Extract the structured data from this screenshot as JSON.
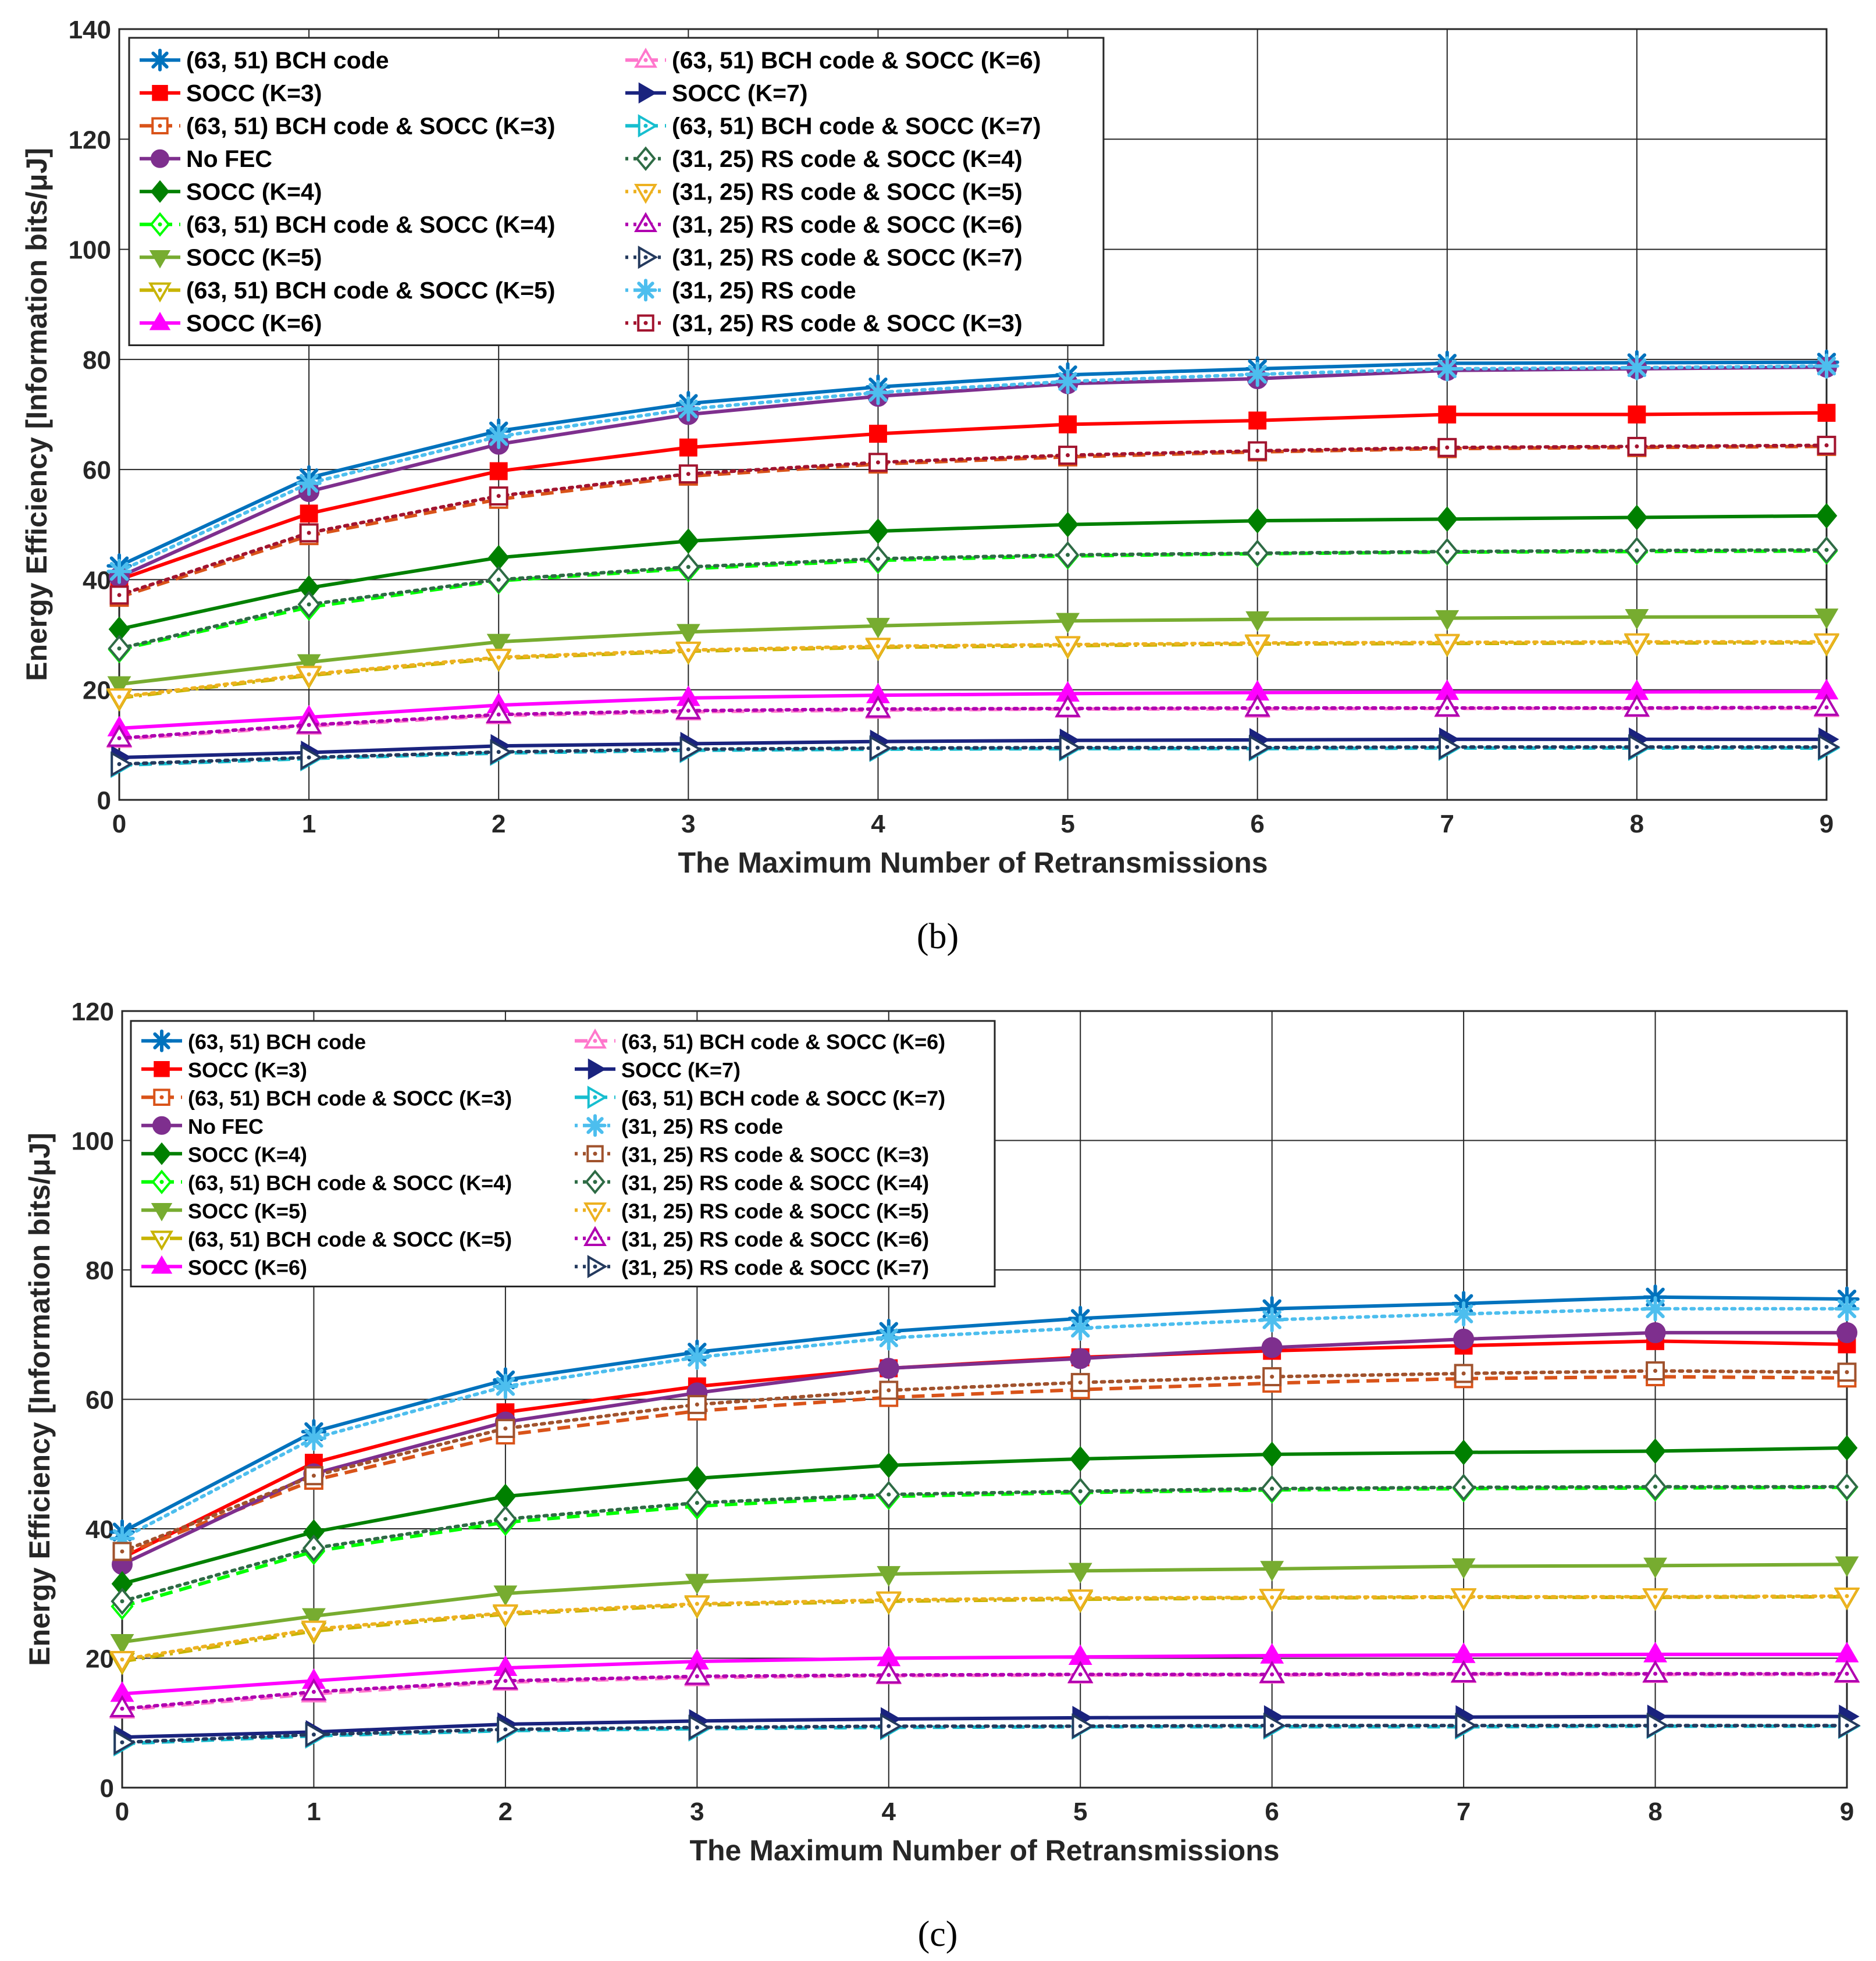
{
  "figure": {
    "captions": [
      "(b)",
      "(c)"
    ]
  },
  "chart_data": [
    {
      "type": "line",
      "panel": "(b)",
      "xlabel": "The Maximum Number of Retransmissions",
      "ylabel": "Energy Efficiency [Information bits/μJ]",
      "xlim": [
        0,
        9
      ],
      "ylim": [
        0,
        140
      ],
      "xticks": [
        0,
        1,
        2,
        3,
        4,
        5,
        6,
        7,
        8,
        9
      ],
      "yticks": [
        0,
        20,
        40,
        60,
        80,
        100,
        120,
        140
      ],
      "grid": true,
      "legend_position": "top-left",
      "x": [
        0,
        1,
        2,
        3,
        4,
        5,
        6,
        7,
        8,
        9
      ],
      "series": [
        {
          "name": "(63, 51) BCH code",
          "color": "#0072bd",
          "dash": "solid",
          "marker": "asterisk",
          "values": [
            42.5,
            58.5,
            67,
            72,
            75,
            77.2,
            78.3,
            79.3,
            79.4,
            79.5
          ]
        },
        {
          "name": "SOCC (K=3)",
          "color": "#ff0000",
          "dash": "solid",
          "marker": "square-filled",
          "values": [
            40,
            52,
            59.7,
            64,
            66.5,
            68.2,
            68.9,
            70,
            70,
            70.3
          ]
        },
        {
          "name": "(63, 51) BCH code & SOCC (K=3)",
          "color": "#d95319",
          "dash": "dashed",
          "marker": "square-dot",
          "values": [
            36.8,
            48,
            54.6,
            58.8,
            61,
            62.3,
            63.2,
            63.8,
            64,
            64.2
          ]
        },
        {
          "name": "No FEC",
          "color": "#7e2f8e",
          "dash": "solid",
          "marker": "circle-filled",
          "values": [
            40.5,
            56,
            64.6,
            70,
            73.3,
            75.6,
            76.5,
            78,
            78.3,
            78.6
          ]
        },
        {
          "name": "SOCC (K=4)",
          "color": "#008000",
          "dash": "solid",
          "marker": "diamond-filled",
          "values": [
            31,
            38.5,
            44,
            47,
            48.8,
            50,
            50.7,
            51,
            51.3,
            51.6
          ]
        },
        {
          "name": "(63, 51) BCH code & SOCC (K=4)",
          "color": "#00ff00",
          "dash": "dashed",
          "marker": "diamond-dot",
          "values": [
            27.3,
            35,
            39.8,
            42,
            43.5,
            44.3,
            44.7,
            45,
            45.1,
            45.2
          ]
        },
        {
          "name": "SOCC (K=5)",
          "color": "#77ac30",
          "dash": "solid",
          "marker": "triangle-down-filled",
          "values": [
            21,
            25,
            28.7,
            30.5,
            31.6,
            32.5,
            32.8,
            33,
            33.2,
            33.3
          ]
        },
        {
          "name": "(63, 51) BCH code & SOCC (K=5)",
          "color": "#c8b400",
          "dash": "dashdot",
          "marker": "triangle-down-dot",
          "values": [
            18.5,
            22.6,
            25.7,
            27,
            27.7,
            28,
            28.3,
            28.4,
            28.5,
            28.5
          ]
        },
        {
          "name": "SOCC (K=6)",
          "color": "#ff00ff",
          "dash": "solid",
          "marker": "triangle-up-filled",
          "values": [
            13,
            15,
            17.2,
            18.5,
            19,
            19.3,
            19.5,
            19.6,
            19.6,
            19.7
          ]
        },
        {
          "name": "(63, 51) BCH code & SOCC (K=6)",
          "color": "#ff77cc",
          "dash": "dashed",
          "marker": "triangle-up-dot",
          "values": [
            11,
            13.4,
            15.3,
            16,
            16.3,
            16.5,
            16.5,
            16.6,
            16.6,
            16.6
          ]
        },
        {
          "name": "SOCC (K=7)",
          "color": "#1a237e",
          "dash": "solid",
          "marker": "triangle-right-filled",
          "values": [
            7.7,
            8.6,
            9.8,
            10.2,
            10.6,
            10.8,
            10.9,
            11,
            11,
            11
          ]
        },
        {
          "name": "(63, 51) BCH code & SOCC (K=7)",
          "color": "#17becf",
          "dash": "dashed",
          "marker": "triangle-right-dot",
          "values": [
            6.3,
            7.5,
            8.5,
            9,
            9.2,
            9.3,
            9.3,
            9.4,
            9.4,
            9.4
          ]
        },
        {
          "name": "(31, 25) RS code & SOCC (K=4)",
          "color": "#2e6b45",
          "dash": "dotted",
          "marker": "diamond-dot",
          "values": [
            27.5,
            35.5,
            40,
            42.3,
            43.8,
            44.5,
            44.8,
            45.1,
            45.3,
            45.4
          ]
        },
        {
          "name": "(31, 25) RS code & SOCC (K=5)",
          "color": "#edb120",
          "dash": "dotted",
          "marker": "triangle-down-dot",
          "values": [
            18.7,
            22.8,
            25.9,
            27.2,
            27.9,
            28.2,
            28.5,
            28.6,
            28.7,
            28.7
          ]
        },
        {
          "name": "(31, 25) RS code & SOCC (K=6)",
          "color": "#b000b0",
          "dash": "dotted",
          "marker": "triangle-up-dot",
          "values": [
            11.2,
            13.6,
            15.5,
            16.2,
            16.5,
            16.6,
            16.7,
            16.7,
            16.7,
            16.8
          ]
        },
        {
          "name": "(31, 25) RS code & SOCC (K=7)",
          "color": "#243a5e",
          "dash": "dotted",
          "marker": "triangle-right-dot",
          "values": [
            6.5,
            7.7,
            8.7,
            9.2,
            9.4,
            9.5,
            9.5,
            9.6,
            9.6,
            9.6
          ]
        },
        {
          "name": "(31, 25) RS code",
          "color": "#4dbeee",
          "dash": "dotted",
          "marker": "asterisk",
          "values": [
            41.5,
            57.5,
            66,
            71,
            74,
            76,
            77.3,
            78.3,
            78.5,
            78.8
          ]
        },
        {
          "name": "(31, 25) RS code & SOCC (K=3)",
          "color": "#a2142f",
          "dash": "dotted",
          "marker": "square-dot",
          "values": [
            37.2,
            48.5,
            55.2,
            59.2,
            61.3,
            62.6,
            63.4,
            64,
            64.2,
            64.4
          ]
        }
      ]
    },
    {
      "type": "line",
      "panel": "(c)",
      "xlabel": "The Maximum Number of Retransmissions",
      "ylabel": "Energy Efficiency [Information bits/μJ]",
      "xlim": [
        0,
        9
      ],
      "ylim": [
        0,
        120
      ],
      "xticks": [
        0,
        1,
        2,
        3,
        4,
        5,
        6,
        7,
        8,
        9
      ],
      "yticks": [
        0,
        20,
        40,
        60,
        80,
        100,
        120
      ],
      "grid": true,
      "legend_position": "top-left",
      "x": [
        0,
        1,
        2,
        3,
        4,
        5,
        6,
        7,
        8,
        9
      ],
      "series": [
        {
          "name": "(63, 51) BCH code",
          "color": "#0072bd",
          "dash": "solid",
          "marker": "asterisk",
          "values": [
            39.5,
            55,
            63,
            67.3,
            70.5,
            72.5,
            74,
            74.8,
            75.8,
            75.5
          ]
        },
        {
          "name": "SOCC (K=3)",
          "color": "#ff0000",
          "dash": "solid",
          "marker": "square-filled",
          "values": [
            35.5,
            50.2,
            58,
            62,
            64.8,
            66.5,
            67.5,
            68.3,
            69,
            68.5
          ]
        },
        {
          "name": "(63, 51) BCH code & SOCC (K=3)",
          "color": "#d95319",
          "dash": "dashed",
          "marker": "square-dot",
          "values": [
            36,
            47.5,
            54.5,
            58.2,
            60.3,
            61.5,
            62.5,
            63.2,
            63.5,
            63.3
          ]
        },
        {
          "name": "No FEC",
          "color": "#7e2f8e",
          "dash": "solid",
          "marker": "circle-filled",
          "values": [
            34.5,
            48.5,
            56.5,
            61,
            64.8,
            66.3,
            68,
            69.3,
            70.3,
            70.3
          ]
        },
        {
          "name": "SOCC (K=4)",
          "color": "#008000",
          "dash": "solid",
          "marker": "diamond-filled",
          "values": [
            31.5,
            39.5,
            45,
            47.8,
            49.8,
            50.8,
            51.5,
            51.8,
            52,
            52.5
          ]
        },
        {
          "name": "(63, 51) BCH code & SOCC (K=4)",
          "color": "#00ff00",
          "dash": "dashed",
          "marker": "diamond-dot",
          "values": [
            28,
            36.5,
            41,
            43.5,
            45,
            45.6,
            46,
            46.2,
            46.3,
            46.4
          ]
        },
        {
          "name": "SOCC (K=5)",
          "color": "#77ac30",
          "dash": "solid",
          "marker": "triangle-down-filled",
          "values": [
            22.5,
            26.5,
            30,
            31.8,
            33,
            33.5,
            33.8,
            34.2,
            34.3,
            34.5
          ]
        },
        {
          "name": "(63, 51) BCH code & SOCC (K=5)",
          "color": "#c8b400",
          "dash": "dashdot",
          "marker": "triangle-down-dot",
          "values": [
            19.5,
            24.2,
            26.8,
            28.2,
            28.8,
            29.1,
            29.3,
            29.4,
            29.4,
            29.5
          ]
        },
        {
          "name": "SOCC (K=6)",
          "color": "#ff00ff",
          "dash": "solid",
          "marker": "triangle-up-filled",
          "values": [
            14.5,
            16.5,
            18.5,
            19.5,
            20,
            20.2,
            20.4,
            20.5,
            20.6,
            20.6
          ]
        },
        {
          "name": "(63, 51) BCH code & SOCC (K=6)",
          "color": "#ff77cc",
          "dash": "dashed",
          "marker": "triangle-up-dot",
          "values": [
            12,
            14.5,
            16.3,
            17,
            17.3,
            17.4,
            17.4,
            17.5,
            17.5,
            17.5
          ]
        },
        {
          "name": "SOCC (K=7)",
          "color": "#1a237e",
          "dash": "solid",
          "marker": "triangle-right-filled",
          "values": [
            7.8,
            8.6,
            9.8,
            10.3,
            10.6,
            10.8,
            10.9,
            10.9,
            11,
            11
          ]
        },
        {
          "name": "(63, 51) BCH code & SOCC (K=7)",
          "color": "#17becf",
          "dash": "dashed",
          "marker": "triangle-right-dot",
          "values": [
            6.8,
            8,
            8.8,
            9.1,
            9.3,
            9.4,
            9.4,
            9.4,
            9.5,
            9.5
          ]
        },
        {
          "name": "(31, 25) RS code",
          "color": "#4dbeee",
          "dash": "dotted",
          "marker": "asterisk",
          "values": [
            38.5,
            54,
            62,
            66.5,
            69.5,
            71,
            72.3,
            73.2,
            74,
            74
          ]
        },
        {
          "name": "(31, 25) RS code & SOCC (K=3)",
          "color": "#a0522d",
          "dash": "dotted",
          "marker": "square-dot",
          "values": [
            36.5,
            48.2,
            55.5,
            59.2,
            61.4,
            62.6,
            63.5,
            64,
            64.4,
            64.2
          ]
        },
        {
          "name": "(31, 25) RS code & SOCC (K=4)",
          "color": "#2e6b45",
          "dash": "dotted",
          "marker": "diamond-dot",
          "values": [
            28.8,
            37,
            41.5,
            44,
            45.3,
            45.8,
            46.2,
            46.4,
            46.5,
            46.5
          ]
        },
        {
          "name": "(31, 25) RS code & SOCC (K=5)",
          "color": "#edb120",
          "dash": "dotted",
          "marker": "triangle-down-dot",
          "values": [
            19.8,
            24.5,
            27,
            28.4,
            29,
            29.3,
            29.4,
            29.5,
            29.5,
            29.6
          ]
        },
        {
          "name": "(31, 25) RS code & SOCC (K=6)",
          "color": "#b000b0",
          "dash": "dotted",
          "marker": "triangle-up-dot",
          "values": [
            12.2,
            14.8,
            16.5,
            17.2,
            17.4,
            17.5,
            17.5,
            17.6,
            17.6,
            17.6
          ]
        },
        {
          "name": "(31, 25) RS code & SOCC (K=7)",
          "color": "#243a5e",
          "dash": "dotted",
          "marker": "triangle-right-dot",
          "values": [
            7,
            8.2,
            9,
            9.3,
            9.5,
            9.5,
            9.6,
            9.6,
            9.6,
            9.6
          ]
        }
      ]
    }
  ]
}
